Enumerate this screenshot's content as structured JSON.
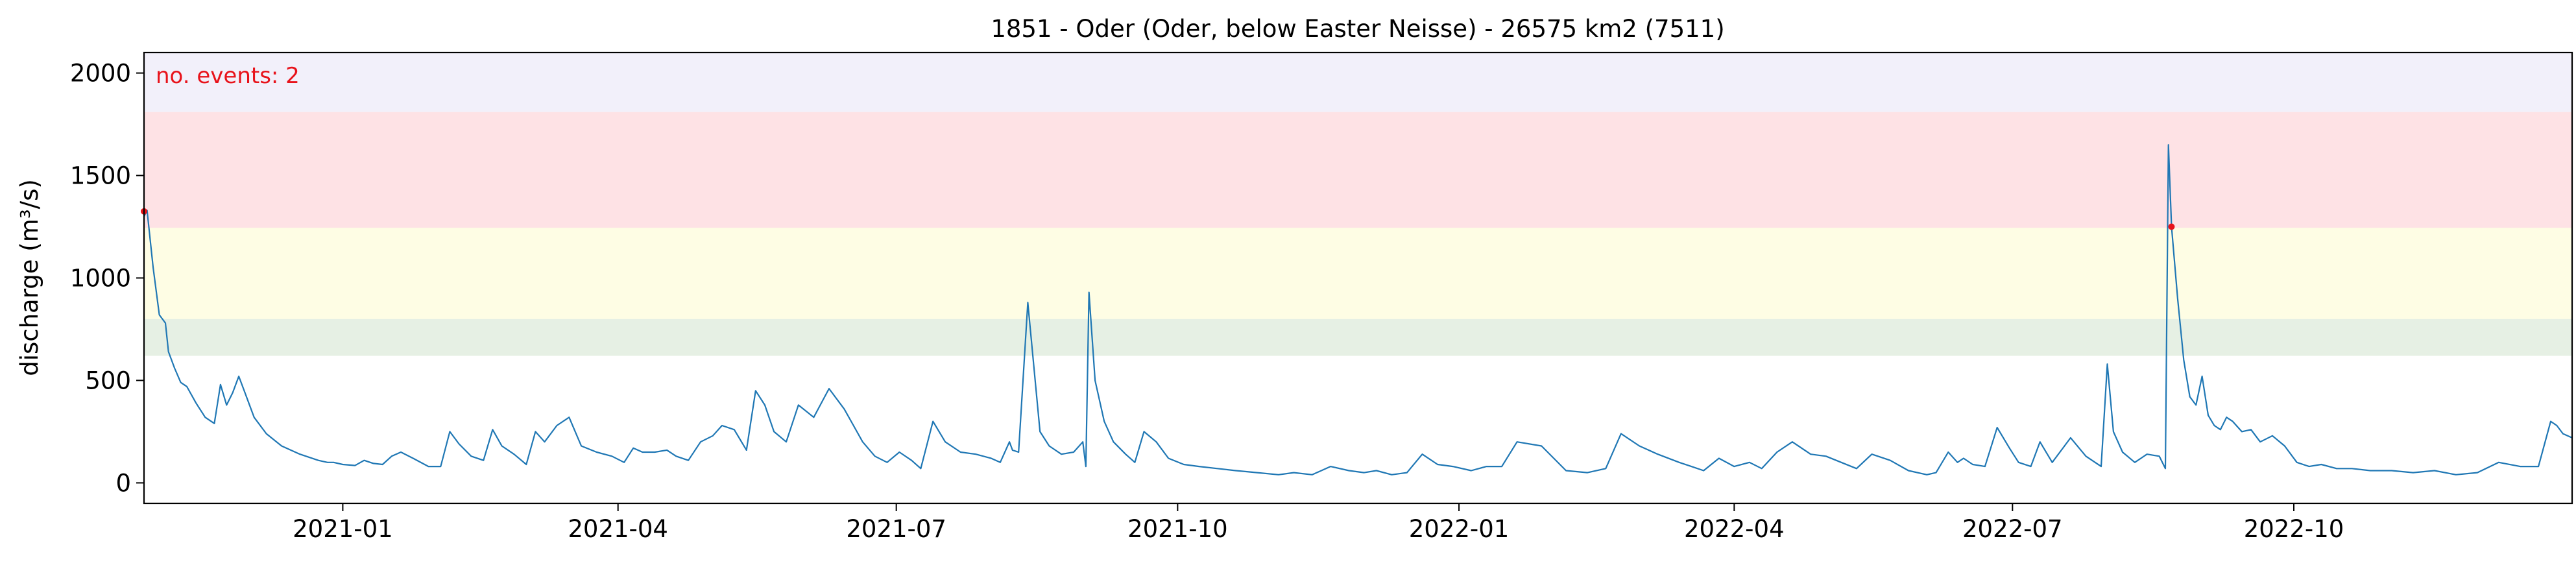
{
  "chart_data": {
    "type": "line",
    "title": "1851 - Oder (Oder, below Easter Neisse) - 26575 km2 (7511)",
    "xlabel": "",
    "ylabel": "discharge (m³/s)",
    "annotation": "no. events: 2",
    "x_range": [
      "2020-10-28",
      "2022-12-31"
    ],
    "ylim": [
      -100,
      2100
    ],
    "y_ticks": [
      0,
      500,
      1000,
      1500,
      2000
    ],
    "x_ticks": [
      "2021-01",
      "2021-04",
      "2021-07",
      "2021-10",
      "2022-01",
      "2022-04",
      "2022-07",
      "2022-10"
    ],
    "grid": false,
    "threshold_bands": [
      {
        "from": 620,
        "to": 800,
        "color": "#e6f0e4"
      },
      {
        "from": 800,
        "to": 1245,
        "color": "#fefde4"
      },
      {
        "from": 1245,
        "to": 1810,
        "color": "#fee2e5"
      },
      {
        "from": 1810,
        "to": 2100,
        "color": "#f2f0fa"
      }
    ],
    "colors": {
      "line": "#1f77b4",
      "event": "#e8121a",
      "annotation": "#e8121a"
    },
    "events": [
      {
        "date": "2020-10-28",
        "value": 1325
      },
      {
        "date": "2022-08-22",
        "value": 1250
      }
    ],
    "series": [
      {
        "x": [
          "2020-10-28",
          "2020-10-29",
          "2020-10-31",
          "2020-11-02",
          "2020-11-04",
          "2020-11-05",
          "2020-11-07",
          "2020-11-09",
          "2020-11-11",
          "2020-11-14",
          "2020-11-17",
          "2020-11-20",
          "2020-11-22",
          "2020-11-24",
          "2020-11-26",
          "2020-11-28",
          "2020-11-30",
          "2020-12-03",
          "2020-12-07",
          "2020-12-12",
          "2020-12-18",
          "2020-12-24",
          "2020-12-27",
          "2020-12-29",
          "2021-01-01",
          "2021-01-05",
          "2021-01-08",
          "2021-01-11",
          "2021-01-14",
          "2021-01-17",
          "2021-01-20",
          "2021-01-24",
          "2021-01-29",
          "2021-02-02",
          "2021-02-05",
          "2021-02-08",
          "2021-02-12",
          "2021-02-16",
          "2021-02-19",
          "2021-02-22",
          "2021-02-26",
          "2021-03-02",
          "2021-03-05",
          "2021-03-08",
          "2021-03-12",
          "2021-03-16",
          "2021-03-20",
          "2021-03-25",
          "2021-03-30",
          "2021-04-03",
          "2021-04-06",
          "2021-04-09",
          "2021-04-13",
          "2021-04-17",
          "2021-04-20",
          "2021-04-24",
          "2021-04-28",
          "2021-05-02",
          "2021-05-05",
          "2021-05-09",
          "2021-05-13",
          "2021-05-16",
          "2021-05-19",
          "2021-05-22",
          "2021-05-26",
          "2021-05-30",
          "2021-06-04",
          "2021-06-09",
          "2021-06-14",
          "2021-06-17",
          "2021-06-20",
          "2021-06-24",
          "2021-06-28",
          "2021-07-02",
          "2021-07-06",
          "2021-07-09",
          "2021-07-13",
          "2021-07-17",
          "2021-07-22",
          "2021-07-27",
          "2021-08-01",
          "2021-08-04",
          "2021-08-07",
          "2021-08-08",
          "2021-08-10",
          "2021-08-13",
          "2021-08-17",
          "2021-08-20",
          "2021-08-24",
          "2021-08-28",
          "2021-08-31",
          "2021-09-01",
          "2021-09-02",
          "2021-09-04",
          "2021-09-07",
          "2021-09-10",
          "2021-09-14",
          "2021-09-17",
          "2021-09-20",
          "2021-09-24",
          "2021-09-28",
          "2021-10-03",
          "2021-10-08",
          "2021-10-14",
          "2021-10-20",
          "2021-10-27",
          "2021-11-03",
          "2021-11-08",
          "2021-11-14",
          "2021-11-20",
          "2021-11-26",
          "2021-12-01",
          "2021-12-05",
          "2021-12-10",
          "2021-12-15",
          "2021-12-20",
          "2021-12-25",
          "2021-12-30",
          "2022-01-05",
          "2022-01-10",
          "2022-01-15",
          "2022-01-20",
          "2022-01-28",
          "2022-02-05",
          "2022-02-12",
          "2022-02-18",
          "2022-02-23",
          "2022-03-01",
          "2022-03-07",
          "2022-03-14",
          "2022-03-18",
          "2022-03-22",
          "2022-03-27",
          "2022-04-01",
          "2022-04-06",
          "2022-04-10",
          "2022-04-15",
          "2022-04-20",
          "2022-04-26",
          "2022-05-01",
          "2022-05-06",
          "2022-05-11",
          "2022-05-16",
          "2022-05-22",
          "2022-05-28",
          "2022-06-03",
          "2022-06-06",
          "2022-06-10",
          "2022-06-13",
          "2022-06-15",
          "2022-06-18",
          "2022-06-22",
          "2022-06-26",
          "2022-06-30",
          "2022-07-03",
          "2022-07-07",
          "2022-07-10",
          "2022-07-14",
          "2022-07-20",
          "2022-07-25",
          "2022-07-30",
          "2022-08-01",
          "2022-08-03",
          "2022-08-06",
          "2022-08-10",
          "2022-08-14",
          "2022-08-18",
          "2022-08-20",
          "2022-08-21",
          "2022-08-22",
          "2022-08-24",
          "2022-08-26",
          "2022-08-28",
          "2022-08-30",
          "2022-09-01",
          "2022-09-03",
          "2022-09-05",
          "2022-09-07",
          "2022-09-09",
          "2022-09-11",
          "2022-09-14",
          "2022-09-17",
          "2022-09-20",
          "2022-09-24",
          "2022-09-28",
          "2022-10-02",
          "2022-10-06",
          "2022-10-10",
          "2022-10-15",
          "2022-10-20",
          "2022-10-26",
          "2022-11-02",
          "2022-11-09",
          "2022-11-16",
          "2022-11-23",
          "2022-11-30",
          "2022-12-07",
          "2022-12-14",
          "2022-12-20",
          "2022-12-24",
          "2022-12-26",
          "2022-12-28",
          "2022-12-31"
        ],
        "y": [
          1300,
          1330,
          1050,
          820,
          780,
          640,
          560,
          490,
          470,
          390,
          320,
          290,
          480,
          380,
          440,
          520,
          440,
          320,
          240,
          180,
          140,
          110,
          100,
          100,
          90,
          85,
          110,
          95,
          90,
          130,
          150,
          120,
          80,
          80,
          250,
          190,
          130,
          110,
          260,
          180,
          140,
          90,
          250,
          200,
          280,
          320,
          180,
          150,
          130,
          100,
          170,
          150,
          150,
          160,
          130,
          110,
          200,
          230,
          280,
          260,
          160,
          450,
          380,
          250,
          200,
          380,
          320,
          460,
          360,
          280,
          200,
          130,
          100,
          150,
          110,
          70,
          300,
          200,
          150,
          140,
          120,
          100,
          200,
          160,
          150,
          880,
          250,
          180,
          140,
          150,
          200,
          80,
          930,
          500,
          300,
          200,
          140,
          100,
          250,
          200,
          120,
          90,
          80,
          70,
          60,
          50,
          40,
          50,
          40,
          80,
          60,
          50,
          60,
          40,
          50,
          140,
          90,
          80,
          60,
          80,
          80,
          200,
          180,
          60,
          50,
          70,
          240,
          180,
          140,
          100,
          80,
          60,
          120,
          80,
          100,
          70,
          150,
          200,
          140,
          130,
          100,
          70,
          140,
          110,
          60,
          40,
          50,
          150,
          100,
          120,
          90,
          80,
          270,
          170,
          100,
          80,
          200,
          100,
          220,
          130,
          80,
          580,
          250,
          150,
          100,
          140,
          130,
          70,
          1650,
          1250,
          900,
          600,
          420,
          380,
          520,
          330,
          280,
          260,
          320,
          300,
          250,
          260,
          200,
          230,
          180,
          100,
          80,
          90,
          70,
          70,
          60,
          60,
          50,
          60,
          40,
          50,
          100,
          80,
          80,
          300,
          280,
          240,
          220
        ]
      }
    ]
  }
}
